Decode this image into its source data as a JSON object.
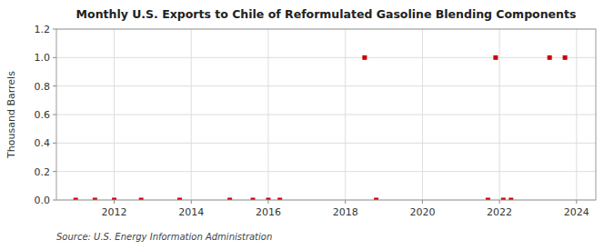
{
  "chart_data": {
    "type": "scatter",
    "title": "Monthly U.S. Exports to Chile of Reformulated Gasoline Blending Components",
    "y_label": "Thousand Barrels",
    "annotations": [
      "Source: U.S. Energy Information Administration"
    ],
    "x": [
      2011.0,
      2011.5,
      2012.0,
      2012.7,
      2013.7,
      2015.0,
      2015.6,
      2016.0,
      2016.3,
      2018.5,
      2018.8,
      2021.7,
      2021.9,
      2022.1,
      2022.3,
      2023.3,
      2023.7
    ],
    "values": [
      0.0,
      0.0,
      0.0,
      0.0,
      0.0,
      0.0,
      0.0,
      0.0,
      0.0,
      1.0,
      0.0,
      0.0,
      1.0,
      0.0,
      0.0,
      1.0,
      1.0
    ],
    "color": "#cc0000",
    "marker": "square",
    "xlim": [
      2010.5,
      2024.5
    ],
    "ylim": [
      0.0,
      1.2
    ],
    "xticks": [
      2012,
      2014,
      2016,
      2018,
      2020,
      2022,
      2024
    ],
    "yticks": [
      {
        "value": 0.0,
        "label": "0.0"
      },
      0.2,
      0.4,
      0.6,
      0.8,
      {
        "value": 1.0,
        "label": "1.0"
      },
      1.2
    ],
    "grid": true
  }
}
